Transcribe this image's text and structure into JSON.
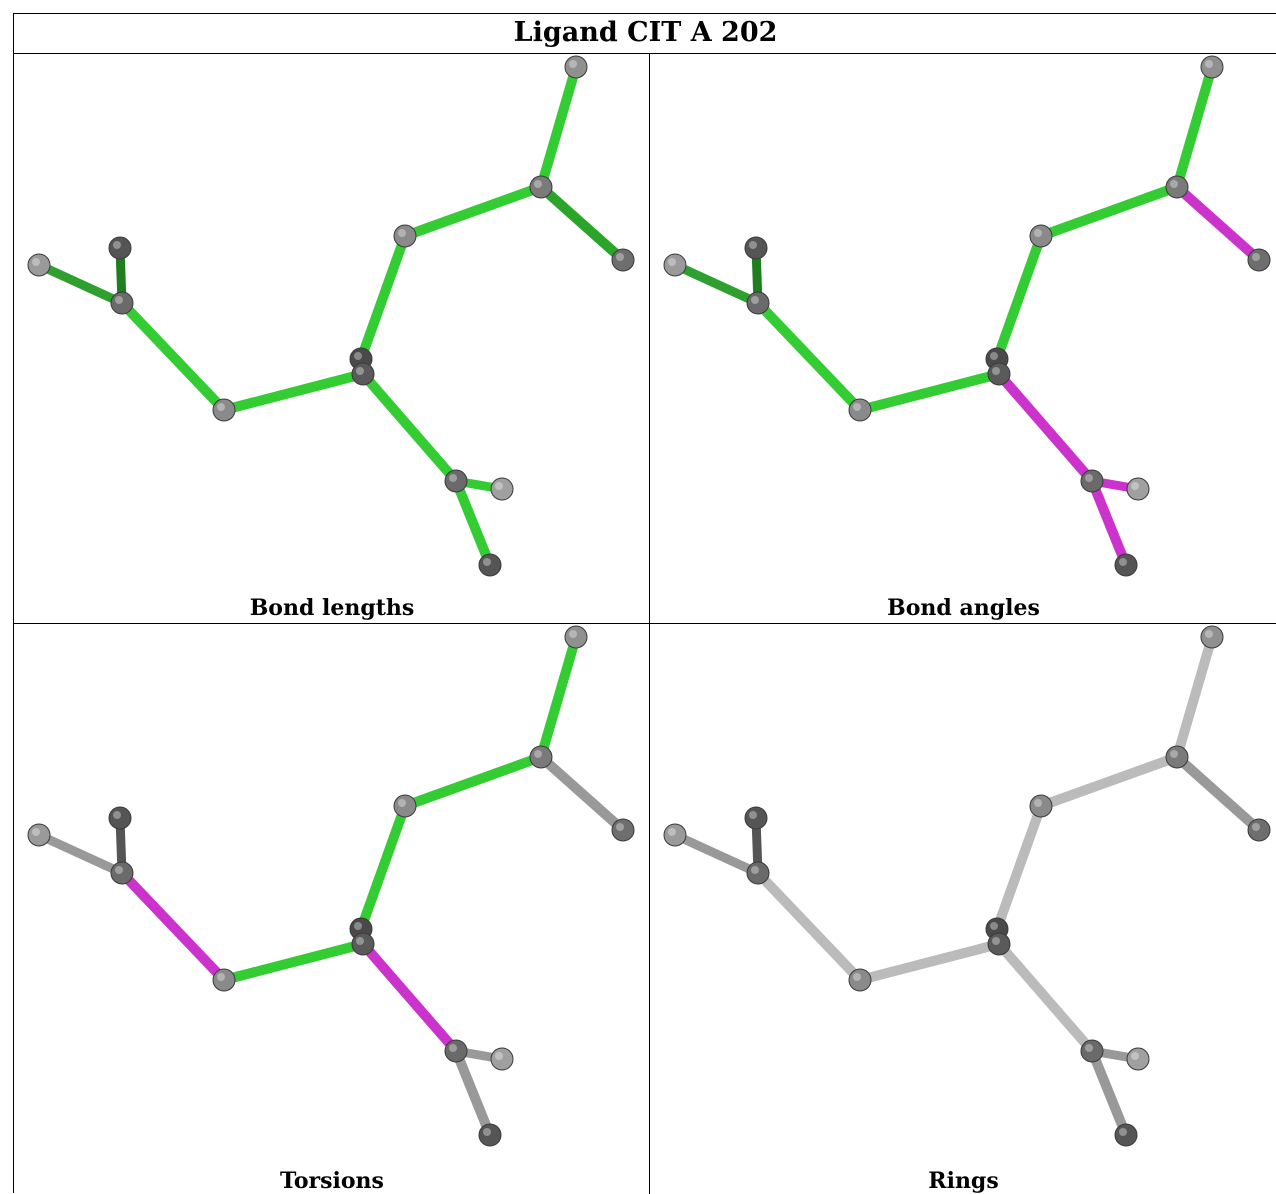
{
  "title": "Ligand CIT A 202",
  "panels": [
    {
      "caption": "Bond lengths",
      "bond_colors": [
        "#33cc33",
        "#33cc33",
        "#33cc33",
        "#33cc33",
        "#33cc33",
        "#2f9f2f",
        "#1f7f1f",
        "#33cc33",
        "#33cc33",
        "#2aa52a",
        "#2fb82f",
        "#33cc33"
      ]
    },
    {
      "caption": "Bond angles",
      "bond_colors": [
        "#33cc33",
        "#33cc33",
        "#33cc33",
        "#33cc33",
        "#33cc33",
        "#2f9f2f",
        "#1f7f1f",
        "#cc33cc",
        "#cc33cc",
        "#cc33cc",
        "#cc33cc",
        "#cc33cc"
      ]
    },
    {
      "caption": "Torsions",
      "bond_colors": [
        "#33cc33",
        "#33cc33",
        "#33cc33",
        "#33cc33",
        "#cc33cc",
        "#999999",
        "#555555",
        "#cc33cc",
        "#999999",
        "#999999",
        "#aaaaaa",
        "#999999"
      ]
    },
    {
      "caption": "Rings",
      "bond_colors": [
        "#bbbbbb",
        "#bbbbbb",
        "#bbbbbb",
        "#bbbbbb",
        "#bbbbbb",
        "#999999",
        "#555555",
        "#bbbbbb",
        "#999999",
        "#999999",
        "#cccccc",
        "#999999"
      ]
    }
  ]
}
